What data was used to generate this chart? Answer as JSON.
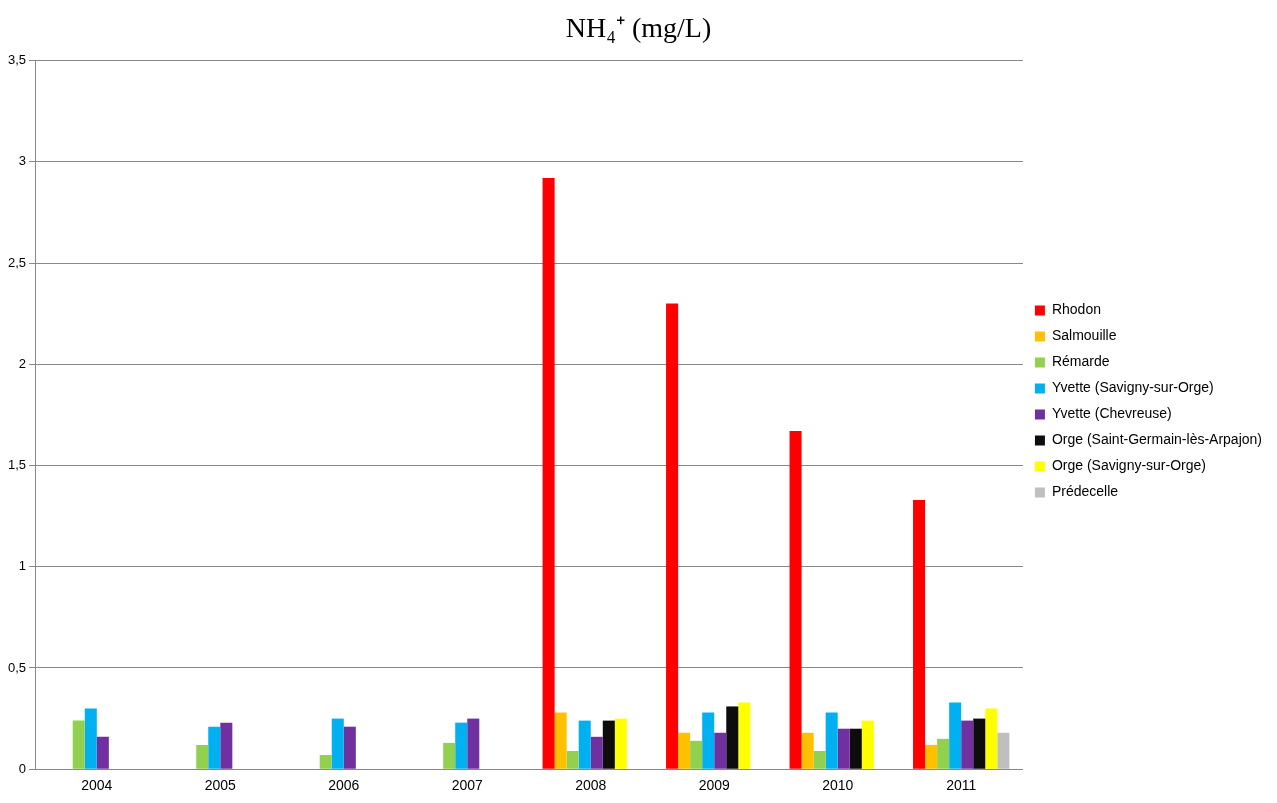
{
  "chart_data": {
    "type": "bar",
    "title": "NH₄⁺ (mg/L)",
    "categories": [
      "2004",
      "2005",
      "2006",
      "2007",
      "2008",
      "2009",
      "2010",
      "2011"
    ],
    "series": [
      {
        "name": "Rhodon",
        "color": "#ff0000",
        "values": [
          null,
          null,
          null,
          null,
          2.92,
          2.3,
          1.67,
          1.33
        ]
      },
      {
        "name": "Salmouille",
        "color": "#ffc000",
        "values": [
          null,
          null,
          null,
          null,
          0.28,
          0.18,
          0.18,
          0.12
        ]
      },
      {
        "name": "Rémarde",
        "color": "#92d050",
        "values": [
          0.24,
          0.12,
          0.07,
          0.13,
          0.09,
          0.14,
          0.09,
          0.15
        ]
      },
      {
        "name": "Yvette (Savigny-sur-Orge)",
        "color": "#00b0f0",
        "values": [
          0.3,
          0.21,
          0.25,
          0.23,
          0.24,
          0.28,
          0.28,
          0.33
        ]
      },
      {
        "name": "Yvette (Chevreuse)",
        "color": "#7030a0",
        "values": [
          0.16,
          0.23,
          0.21,
          0.25,
          0.16,
          0.18,
          0.2,
          0.24
        ]
      },
      {
        "name": "Orge (Saint-Germain-lès-Arpajon)",
        "color": "#0d0d0d",
        "values": [
          null,
          null,
          null,
          null,
          0.24,
          0.31,
          0.2,
          0.25
        ]
      },
      {
        "name": "Orge (Savigny-sur-Orge)",
        "color": "#ffff00",
        "values": [
          null,
          null,
          null,
          null,
          0.25,
          0.33,
          0.24,
          0.3
        ]
      },
      {
        "name": "Prédecelle",
        "color": "#bfbfbf",
        "values": [
          null,
          null,
          null,
          null,
          null,
          null,
          null,
          0.18
        ]
      }
    ],
    "ylim": [
      0,
      3.5
    ],
    "yticks": [
      0,
      {
        "value": 0.5,
        "label": "0,5"
      },
      1,
      {
        "value": 1.5,
        "label": "1,5"
      },
      2,
      {
        "value": 2.5,
        "label": "2,5"
      },
      3,
      {
        "value": 3.5,
        "label": "3,5"
      }
    ],
    "grid": "y",
    "legend": "right"
  }
}
